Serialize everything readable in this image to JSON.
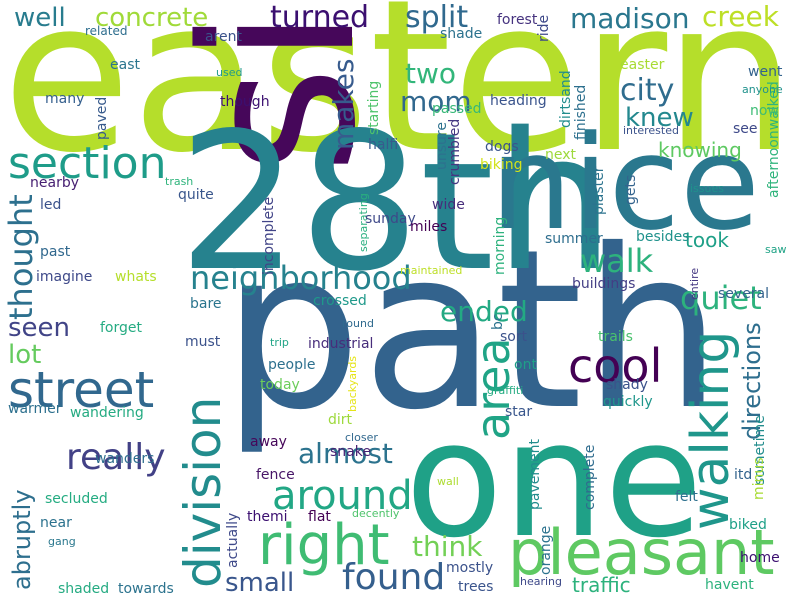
{
  "words": [
    {
      "text": "eastern",
      "color": "#b5de2b"
    },
    {
      "text": "path",
      "color": "#33638d"
    },
    {
      "text": "side",
      "color": "#46075a"
    },
    {
      "text": "28th",
      "color": "#26828e"
    },
    {
      "text": "one",
      "color": "#1fa187"
    },
    {
      "text": "nice",
      "color": "#2a788e"
    },
    {
      "text": "pleasant",
      "color": "#5ec962"
    },
    {
      "text": "walking",
      "color": "#1f968b"
    },
    {
      "text": "division",
      "color": "#228c8d"
    },
    {
      "text": "right",
      "color": "#3fbc73"
    },
    {
      "text": "street",
      "color": "#31688e"
    },
    {
      "text": "area",
      "color": "#20a486"
    },
    {
      "text": "section",
      "color": "#1e9c89"
    },
    {
      "text": "neighborhood",
      "color": "#26828e"
    },
    {
      "text": "around",
      "color": "#22a785"
    },
    {
      "text": "cool",
      "color": "#440154"
    },
    {
      "text": "found",
      "color": "#355f8d"
    },
    {
      "text": "really",
      "color": "#424186"
    },
    {
      "text": "walk",
      "color": "#2db27d"
    },
    {
      "text": "quiet",
      "color": "#2db27d"
    },
    {
      "text": "thought",
      "color": "#2d708e"
    },
    {
      "text": "concrete",
      "color": "#a0da39"
    },
    {
      "text": "madison",
      "color": "#2a778e"
    },
    {
      "text": "creek",
      "color": "#bddf26"
    },
    {
      "text": "turned",
      "color": "#3b0f70"
    },
    {
      "text": "split",
      "color": "#30698e"
    },
    {
      "text": "well",
      "color": "#287c8e"
    },
    {
      "text": "two",
      "color": "#32b67a"
    },
    {
      "text": "mom",
      "color": "#31688e"
    },
    {
      "text": "city",
      "color": "#2f6c8e"
    },
    {
      "text": "makes",
      "color": "#375b8d"
    },
    {
      "text": "knew",
      "color": "#23888e"
    },
    {
      "text": "ended",
      "color": "#23a983"
    },
    {
      "text": "almost",
      "color": "#2c738e"
    },
    {
      "text": "think",
      "color": "#73d056"
    },
    {
      "text": "small",
      "color": "#39568c"
    },
    {
      "text": "seen",
      "color": "#414487"
    },
    {
      "text": "lot",
      "color": "#65cb5e"
    },
    {
      "text": "abruptly",
      "color": "#2e6f8e"
    },
    {
      "text": "directions",
      "color": "#2e6e8e"
    },
    {
      "text": "took",
      "color": "#1fa088"
    },
    {
      "text": "knowing",
      "color": "#5ec962"
    },
    {
      "text": "traffic",
      "color": "#2db27d"
    },
    {
      "text": "forest",
      "color": "#46337f"
    },
    {
      "text": "ride",
      "color": "#3e4989"
    },
    {
      "text": "shade",
      "color": "#2c728e"
    },
    {
      "text": "related",
      "color": "#2e6e8e"
    },
    {
      "text": "arent",
      "color": "#3b528b"
    },
    {
      "text": "east",
      "color": "#2b758e"
    },
    {
      "text": "used",
      "color": "#1f9a8a"
    },
    {
      "text": "easter",
      "color": "#a8db34"
    },
    {
      "text": "went",
      "color": "#33638d"
    },
    {
      "text": "anyone",
      "color": "#20928c"
    },
    {
      "text": "afternoonwalked",
      "color": "#2fb47c"
    },
    {
      "text": "many",
      "color": "#355f8d"
    },
    {
      "text": "though",
      "color": "#3b0f70"
    },
    {
      "text": "paved",
      "color": "#375a8c"
    },
    {
      "text": "starting",
      "color": "#4ec36b"
    },
    {
      "text": "dirtsand",
      "color": "#228d8d"
    },
    {
      "text": "finished",
      "color": "#2d708e"
    },
    {
      "text": "heading",
      "color": "#3a548c"
    },
    {
      "text": "passed",
      "color": "#37b878"
    },
    {
      "text": "now",
      "color": "#3dbc74"
    },
    {
      "text": "interested",
      "color": "#3b528b"
    },
    {
      "text": "see",
      "color": "#3e4989"
    },
    {
      "text": "halfi",
      "color": "#375b8d"
    },
    {
      "text": "unsure",
      "color": "#2d718e"
    },
    {
      "text": "crumbled",
      "color": "#453882"
    },
    {
      "text": "dogs",
      "color": "#3a548c"
    },
    {
      "text": "next",
      "color": "#9dd93b"
    },
    {
      "text": "plaster",
      "color": "#2c738e"
    },
    {
      "text": "biking",
      "color": "#d2e21b"
    },
    {
      "text": "gets",
      "color": "#33638d"
    },
    {
      "text": "issues",
      "color": "#20928c"
    },
    {
      "text": "nearby",
      "color": "#482173"
    },
    {
      "text": "trash",
      "color": "#2fb47c"
    },
    {
      "text": "quite",
      "color": "#39568c"
    },
    {
      "text": "separating",
      "color": "#29af7f"
    },
    {
      "text": "led",
      "color": "#3b528b"
    },
    {
      "text": "wide",
      "color": "#472d7b"
    },
    {
      "text": "incomplete",
      "color": "#414487"
    },
    {
      "text": "sunday",
      "color": "#3e4989"
    },
    {
      "text": "miles",
      "color": "#440154"
    },
    {
      "text": "morning",
      "color": "#2db27d"
    },
    {
      "text": "summer",
      "color": "#2e6e8e"
    },
    {
      "text": "besides",
      "color": "#20928c"
    },
    {
      "text": "saw",
      "color": "#20a386"
    },
    {
      "text": "past",
      "color": "#31688e"
    },
    {
      "text": "imagine",
      "color": "#3e4989"
    },
    {
      "text": "whats",
      "color": "#b5de2b"
    },
    {
      "text": "maintained",
      "color": "#bddf26"
    },
    {
      "text": "bare",
      "color": "#2b758e"
    },
    {
      "text": "buildings",
      "color": "#433e85"
    },
    {
      "text": "entire",
      "color": "#453882"
    },
    {
      "text": "several",
      "color": "#33638d"
    },
    {
      "text": "forget",
      "color": "#25ab82"
    },
    {
      "text": "crossed",
      "color": "#1f998a"
    },
    {
      "text": "bc",
      "color": "#2c738e"
    },
    {
      "text": "trails",
      "color": "#4ac16d"
    },
    {
      "text": "round",
      "color": "#306a8e"
    },
    {
      "text": "must",
      "color": "#3b528b"
    },
    {
      "text": "trip",
      "color": "#20a486"
    },
    {
      "text": "industrial",
      "color": "#472d7b"
    },
    {
      "text": "sort",
      "color": "#3b528b"
    },
    {
      "text": "people",
      "color": "#2d708e"
    },
    {
      "text": "ont",
      "color": "#1f9f88"
    },
    {
      "text": "shady",
      "color": "#3b528b"
    },
    {
      "text": "today",
      "color": "#6ccd5a"
    },
    {
      "text": "backyards",
      "color": "#e5e419"
    },
    {
      "text": "graffiti",
      "color": "#25ac82"
    },
    {
      "text": "quickly",
      "color": "#1f968b"
    },
    {
      "text": "warmer",
      "color": "#2d708e"
    },
    {
      "text": "wandering",
      "color": "#25ab82"
    },
    {
      "text": "dirt",
      "color": "#9dd93b"
    },
    {
      "text": "star",
      "color": "#39568c"
    },
    {
      "text": "sometime",
      "color": "#228d8d"
    },
    {
      "text": "away",
      "color": "#46075a"
    },
    {
      "text": "closer",
      "color": "#31688e"
    },
    {
      "text": "wanders",
      "color": "#2e6e8e"
    },
    {
      "text": "snake",
      "color": "#482173"
    },
    {
      "text": "complete",
      "color": "#2f6c8e"
    },
    {
      "text": "itd",
      "color": "#33638d"
    },
    {
      "text": "minus",
      "color": "#a8db34"
    },
    {
      "text": "fence",
      "color": "#481668"
    },
    {
      "text": "secluded",
      "color": "#25ac82"
    },
    {
      "text": "wall",
      "color": "#addc30"
    },
    {
      "text": "pavement",
      "color": "#228c8d"
    },
    {
      "text": "themi",
      "color": "#3b0f70"
    },
    {
      "text": "flat",
      "color": "#440154"
    },
    {
      "text": "felt",
      "color": "#2d708e"
    },
    {
      "text": "near",
      "color": "#2c728e"
    },
    {
      "text": "decently",
      "color": "#4ec36b"
    },
    {
      "text": "biked",
      "color": "#1fa088"
    },
    {
      "text": "actually",
      "color": "#3e4989"
    },
    {
      "text": "gang",
      "color": "#2a788e"
    },
    {
      "text": "orange",
      "color": "#2c728e"
    },
    {
      "text": "home",
      "color": "#3b0f70"
    },
    {
      "text": "mostly",
      "color": "#3b528b"
    },
    {
      "text": "towards",
      "color": "#2c738e"
    },
    {
      "text": "hearing",
      "color": "#3e4989"
    },
    {
      "text": "shaded",
      "color": "#25ab82"
    },
    {
      "text": "trees",
      "color": "#3a548c"
    },
    {
      "text": "havent",
      "color": "#2db27d"
    }
  ]
}
